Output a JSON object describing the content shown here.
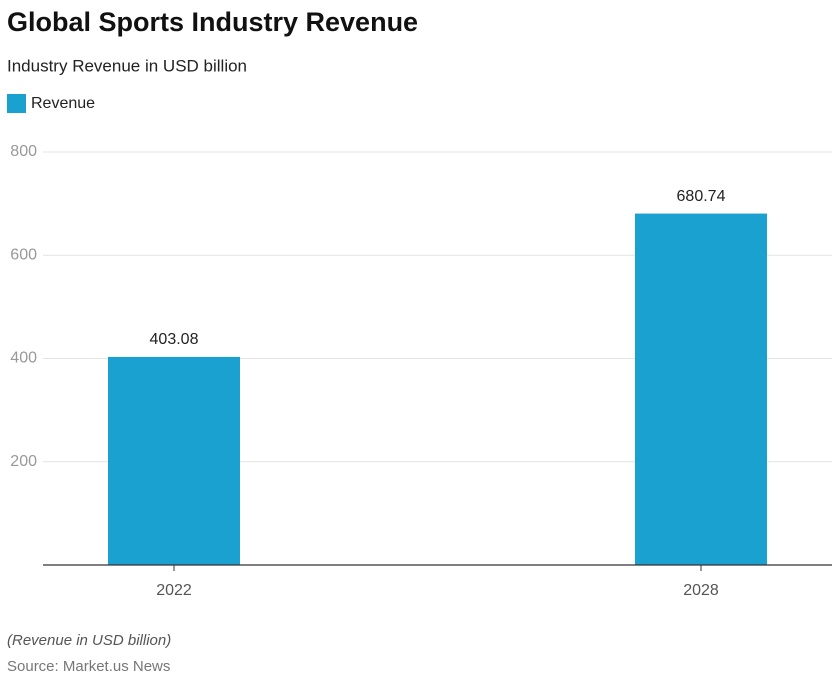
{
  "chart_data": {
    "type": "bar",
    "title": "Global Sports Industry Revenue",
    "subtitle": "Industry Revenue in USD billion",
    "categories": [
      "2022",
      "2028"
    ],
    "series": [
      {
        "name": "Revenue",
        "color": "#1ba1cf",
        "values": [
          403.08,
          680.74
        ]
      }
    ],
    "ylim": [
      0,
      800
    ],
    "yticks": [
      200,
      400,
      600,
      800
    ],
    "grid": true,
    "legend": "top-left",
    "notes": [
      "(Revenue in USD billion)",
      "Source: Market.us News"
    ]
  }
}
